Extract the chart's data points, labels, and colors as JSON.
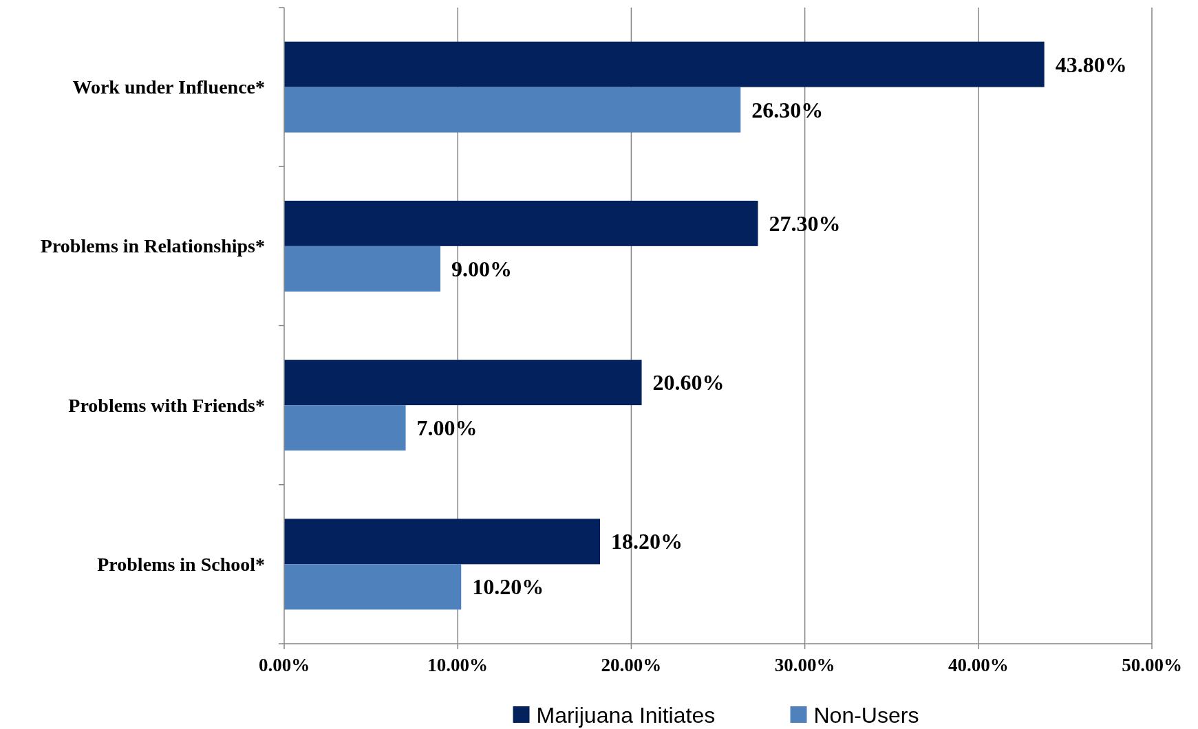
{
  "chart_data": {
    "type": "bar",
    "orientation": "horizontal",
    "categories": [
      "Work under Influence*",
      "Problems in Relationships*",
      "Problems with Friends*",
      "Problems in School*"
    ],
    "series": [
      {
        "name": "Marijuana Initiates",
        "color": "#03215d",
        "values": [
          43.8,
          27.3,
          20.6,
          18.2
        ],
        "value_labels": [
          "43.80%",
          "27.30%",
          "20.60%",
          "18.20%"
        ]
      },
      {
        "name": "Non-Users",
        "color": "#4f81bd",
        "values": [
          26.3,
          9.0,
          7.0,
          10.2
        ],
        "value_labels": [
          "26.30%",
          "9.00%",
          "7.00%",
          "10.20%"
        ]
      }
    ],
    "xlim": [
      0,
      50
    ],
    "xticks": [
      {
        "value": 0,
        "label": "0.00%"
      },
      {
        "value": 10,
        "label": "10.00%"
      },
      {
        "value": 20,
        "label": "20.00%"
      },
      {
        "value": 30,
        "label": "30.00%"
      },
      {
        "value": 40,
        "label": "40.00%"
      },
      {
        "value": 50,
        "label": "50.00%"
      }
    ],
    "grid": "x",
    "legend": "bottom"
  }
}
